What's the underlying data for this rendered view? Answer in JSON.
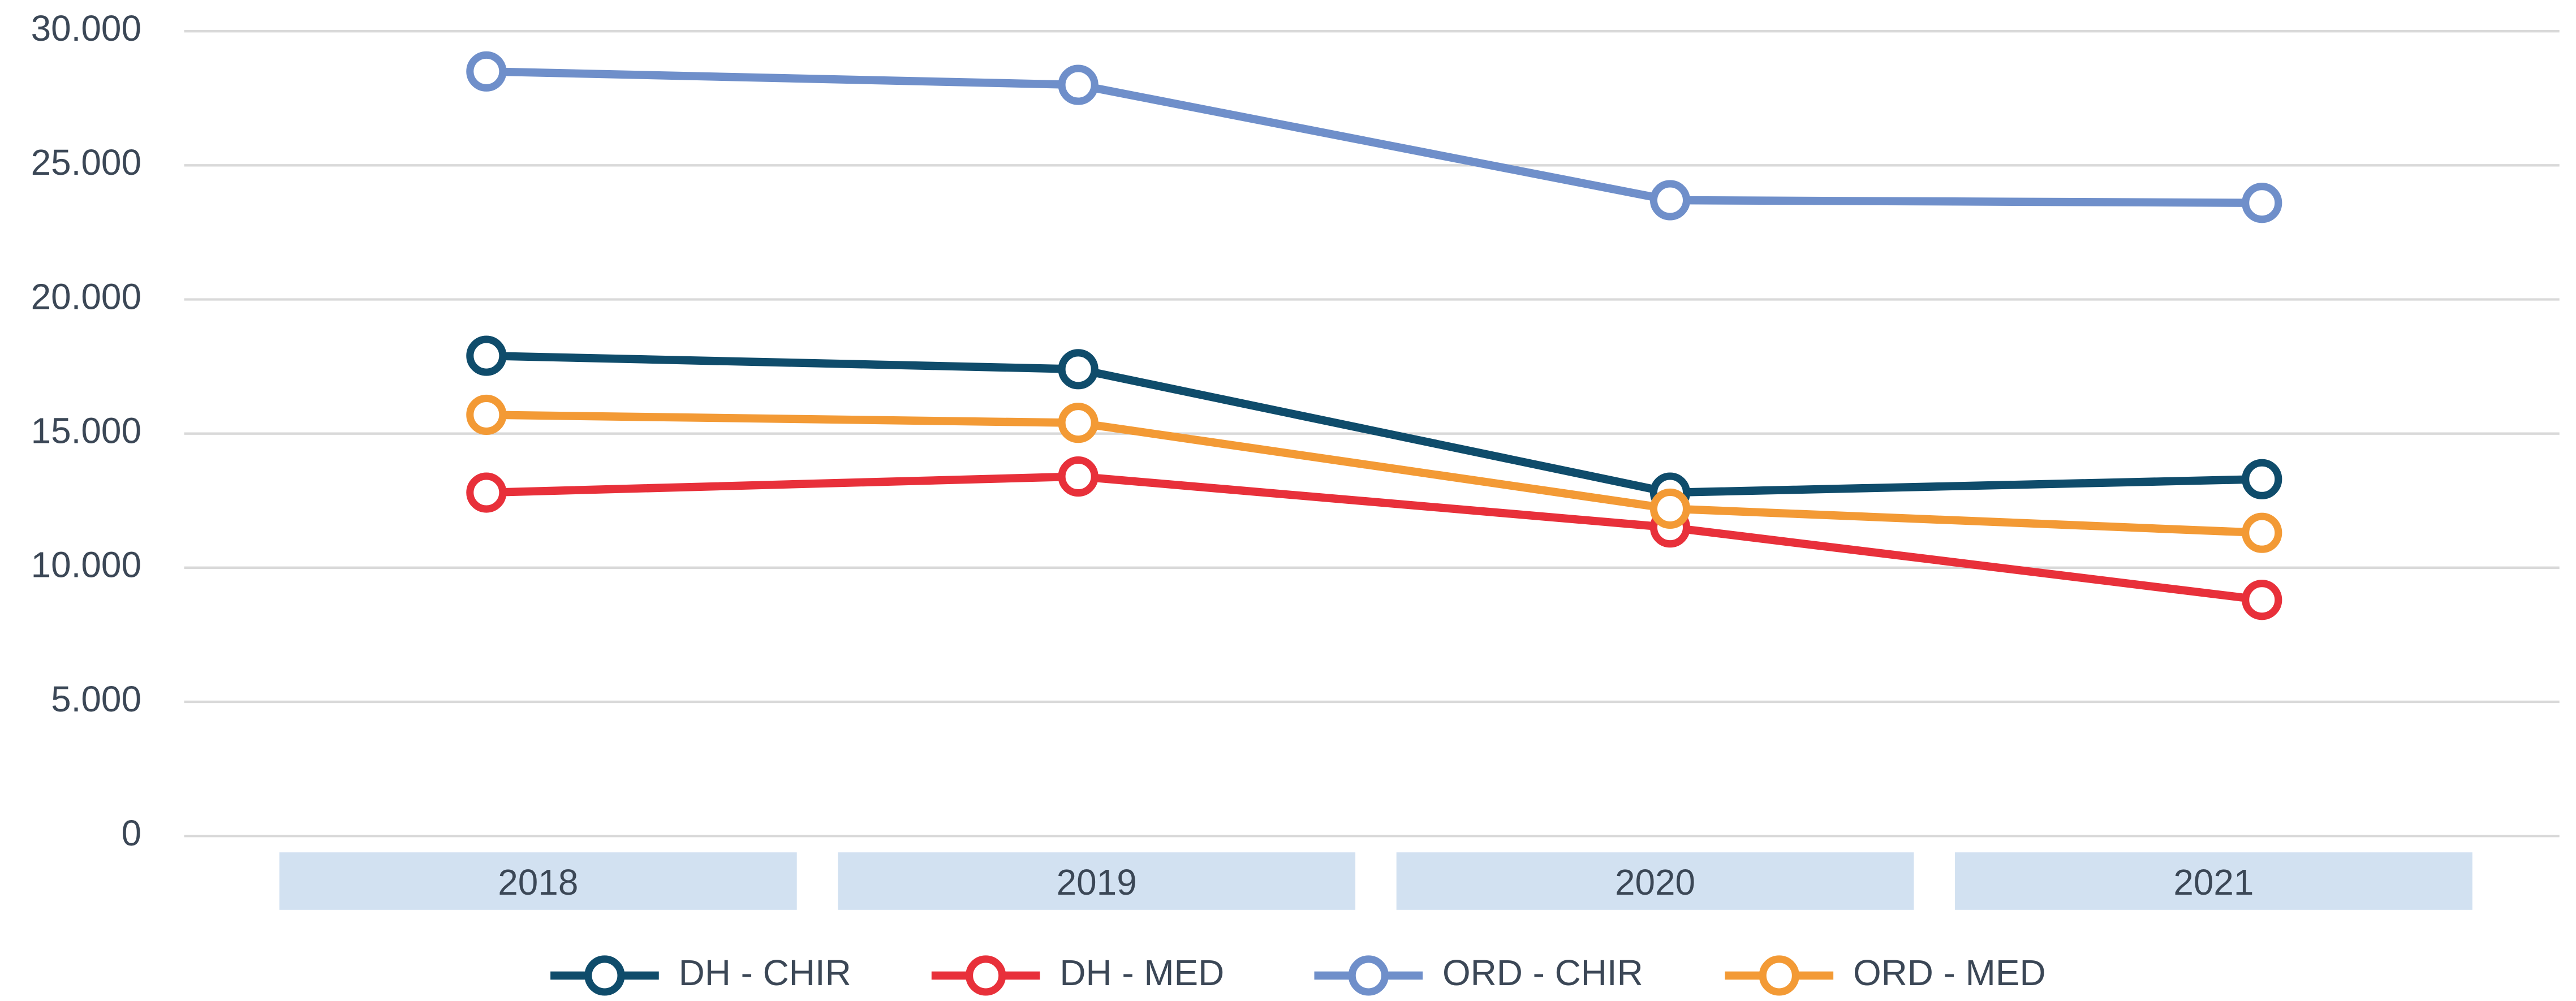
{
  "chart_data": {
    "type": "line",
    "categories": [
      "2018",
      "2019",
      "2020",
      "2021"
    ],
    "series": [
      {
        "name": "DH - CHIR",
        "color": "#0f4c6b",
        "values": [
          17900,
          17400,
          12800,
          13300
        ]
      },
      {
        "name": "DH - MED",
        "color": "#e8303a",
        "values": [
          12800,
          13400,
          11500,
          8800
        ]
      },
      {
        "name": "ORD - CHIR",
        "color": "#6f8fca",
        "values": [
          28500,
          28000,
          23700,
          23600
        ]
      },
      {
        "name": "ORD - MED",
        "color": "#f39a35",
        "values": [
          15700,
          15400,
          12200,
          11300
        ]
      }
    ],
    "ylim": [
      0,
      30000
    ],
    "yticks": [
      {
        "value": 0,
        "label": "0"
      },
      {
        "value": 5000,
        "label": "5.000"
      },
      {
        "value": 10000,
        "label": "10.000"
      },
      {
        "value": 15000,
        "label": "15.000"
      },
      {
        "value": 20000,
        "label": "20.000"
      },
      {
        "value": 25000,
        "label": "25.000"
      },
      {
        "value": 30000,
        "label": "30.000"
      }
    ],
    "grid": true
  }
}
